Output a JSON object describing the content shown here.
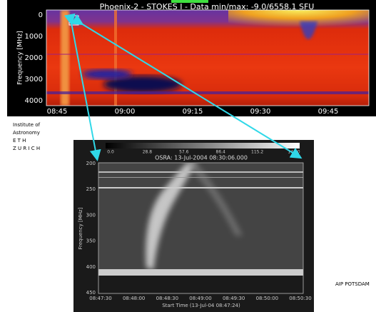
{
  "top_panel": {
    "title": "Phoenix-2 - STOKES I - Data min/max: -9.0/6558.1 SFU",
    "y_label": "Frequency [MHz]",
    "y_ticks": [
      "0",
      "1000",
      "2000",
      "3000",
      "4000"
    ],
    "x_ticks": [
      "08:45",
      "09:00",
      "09:15",
      "09:30",
      "09:45"
    ]
  },
  "institute": [
    "Institute of",
    "Astronomy",
    "E T H",
    "Z U R I C H"
  ],
  "bottom_panel": {
    "colorbar_ticks": [
      "0.0",
      "28.8",
      "57.6",
      "86.4",
      "115.2",
      "144.0"
    ],
    "title": "OSRA: 13-Jul-2004 08:30:06.000",
    "y_label": "Frequency [MHz]",
    "y_ticks": [
      "200",
      "250",
      "300",
      "350",
      "400",
      "450"
    ],
    "x_ticks": [
      "08:47:30",
      "08:48:00",
      "08:48:30",
      "08:49:00",
      "08:49:30",
      "08:50:00",
      "08:50:30"
    ],
    "x_label": "Start Time (13-Jul-04 08:47:24)"
  },
  "credit": "AIP POTSDAM"
}
